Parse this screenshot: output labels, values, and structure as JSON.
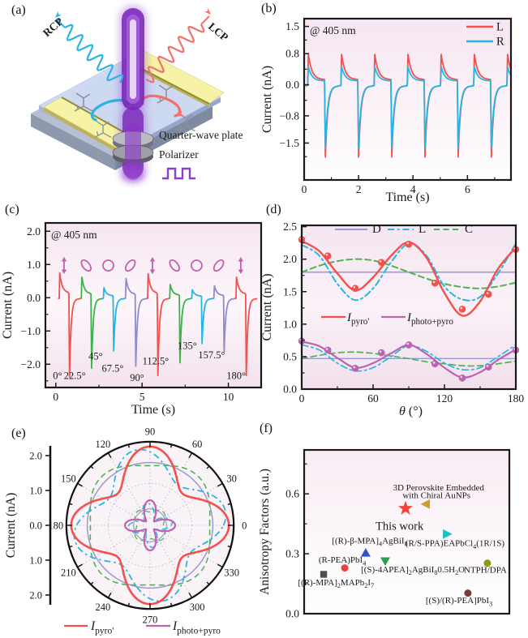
{
  "panels": [
    {
      "id": "a",
      "label": "(a)"
    },
    {
      "id": "b",
      "label": "(b)"
    },
    {
      "id": "c",
      "label": "(c)"
    },
    {
      "id": "d",
      "label": "(d)"
    },
    {
      "id": "e",
      "label": "(e)"
    },
    {
      "id": "f",
      "label": "(f)"
    }
  ],
  "schematic": {
    "labels": {
      "rcp": "RCP",
      "lcp": "LCP",
      "qwp": "Quarter-wave plate",
      "polarizer": "Polarizer"
    },
    "colors": {
      "rcp": "#2bb3e6",
      "lcp": "#f4716b",
      "beam": "#7a28b8",
      "beam_glow": "#8a3bd0",
      "film": "#cdd9f2",
      "electrode": "#f6f3a6",
      "electrode_edge": "#8f8c3a",
      "base": "#8e99ad",
      "pulse": "#8d3fd0",
      "molecule": "#8f8f98"
    }
  },
  "chart_data": [
    {
      "id": "b",
      "type": "line",
      "annotation": "@ 405 nm",
      "annotation_color": "#8b2cc8",
      "xlabel": "Time (s)",
      "ylabel": "Current (nA)",
      "x_range": [
        0,
        7.6
      ],
      "y_range": [
        -2.45,
        1.7
      ],
      "x_ticks": [
        {
          "v": 0,
          "label": "0"
        },
        {
          "v": 2,
          "label": "2"
        },
        {
          "v": 4,
          "label": "4"
        },
        {
          "v": 6,
          "label": "6"
        }
      ],
      "x_minor": [
        1,
        3,
        5,
        7
      ],
      "y_ticks": [
        {
          "v": 1.5,
          "label": "1.5"
        },
        {
          "v": 0.8,
          "label": "0.8"
        },
        {
          "v": 0,
          "label": "0.0"
        },
        {
          "v": -0.8,
          "label": "−0.8"
        },
        {
          "v": -1.5,
          "label": "−1.5"
        }
      ],
      "y_minor": [
        1.15,
        0.4,
        -0.4,
        -1.15,
        -1.85
      ],
      "pulse": {
        "t_on": 0.13,
        "period": 1.22,
        "on_duration": 0.62,
        "cycles": 7
      },
      "series": [
        {
          "name": "L",
          "color": "#f4514e",
          "peak": 0.78,
          "plateau": 0.13,
          "neg": -1.86
        },
        {
          "name": "R",
          "color": "#27b5e2",
          "peak": 0.46,
          "plateau": 0.1,
          "neg": -1.63
        }
      ]
    },
    {
      "id": "c",
      "type": "line",
      "annotation": "@ 405 nm",
      "annotation_color": "#8b2cc8",
      "xlabel": "Time (s)",
      "ylabel": "Current (nA)",
      "x_range": [
        -0.6,
        11.9
      ],
      "y_range": [
        -2.7,
        2.25
      ],
      "x_ticks": [
        {
          "v": 0,
          "label": "0"
        },
        {
          "v": 5,
          "label": "5"
        },
        {
          "v": 10,
          "label": "10"
        }
      ],
      "x_minor": [
        2.5,
        7.5
      ],
      "y_ticks": [
        {
          "v": 2,
          "label": "2.0"
        },
        {
          "v": 1,
          "label": "1.0"
        },
        {
          "v": 0,
          "label": "0.0"
        },
        {
          "v": -1,
          "label": "−1.0"
        },
        {
          "v": -2,
          "label": "−2.0"
        }
      ],
      "y_minor": [
        1.5,
        0.5,
        -0.5,
        -1.5,
        -2.5
      ],
      "pulse": {
        "t_on": 0.2,
        "period": 1.28,
        "on_duration": 0.56
      },
      "symbol_color": "#c45fae",
      "cycles": [
        {
          "angle": "0°",
          "color": "#f4514e",
          "peak": 0.75,
          "plateau": 0.15,
          "neg": -2.38,
          "pol": "linear",
          "label_t": 0.1,
          "label_y": -2.45
        },
        {
          "angle": "22.5°",
          "color": "#3cb34a",
          "peak": 0.62,
          "plateau": 0.12,
          "neg": -2.12,
          "pol": "ellipseL",
          "label_t": 1.1,
          "label_y": -2.45
        },
        {
          "angle": "45°",
          "color": "#22b6e5",
          "peak": 0.3,
          "plateau": 0.06,
          "neg": -1.6,
          "pol": "circle",
          "label_t": 2.31,
          "label_y": -1.86
        },
        {
          "angle": "67.5°",
          "color": "#8d8bca",
          "peak": 0.58,
          "plateau": 0.11,
          "neg": -2.06,
          "pol": "ellipseR",
          "label_t": 3.3,
          "label_y": -2.22
        },
        {
          "angle": "90°",
          "color": "#f4514e",
          "peak": 0.72,
          "plateau": 0.14,
          "neg": -2.34,
          "pol": "linear",
          "label_t": 4.71,
          "label_y": -2.5
        },
        {
          "angle": "112.5°",
          "color": "#3cb34a",
          "peak": 0.4,
          "plateau": 0.08,
          "neg": -1.96,
          "pol": "ellipseL",
          "label_t": 5.79,
          "label_y": -2.0
        },
        {
          "angle": "135°",
          "color": "#22b6e5",
          "peak": 0.24,
          "plateau": 0.05,
          "neg": -1.38,
          "pol": "circle",
          "label_t": 7.62,
          "label_y": -1.54
        },
        {
          "angle": "157.5°",
          "color": "#8d8bca",
          "peak": 0.36,
          "plateau": 0.07,
          "neg": -1.62,
          "pol": "ellipseR",
          "label_t": 9.03,
          "label_y": -1.82
        },
        {
          "angle": "180°",
          "color": "#f4514e",
          "peak": 0.62,
          "plateau": 0.12,
          "neg": -2.34,
          "pol": "linear",
          "label_t": 10.45,
          "label_y": -2.45
        }
      ]
    },
    {
      "id": "d",
      "type": "line",
      "ylabel": "Current (nA)",
      "xlabel_segs": [
        [
          "θ",
          "i"
        ],
        [
          " (°)"
        ]
      ],
      "x_range": [
        0,
        180
      ],
      "y_range": [
        0,
        2.52
      ],
      "x_ticks": [
        {
          "v": 0,
          "label": "0"
        },
        {
          "v": 60,
          "label": "60"
        },
        {
          "v": 120,
          "label": "120"
        },
        {
          "v": 180,
          "label": "180"
        }
      ],
      "x_minor": [
        30,
        90,
        150
      ],
      "y_ticks": [
        {
          "v": 0,
          "label": "0.0"
        },
        {
          "v": 0.5,
          "label": "0.5"
        },
        {
          "v": 1,
          "label": "1.0"
        },
        {
          "v": 1.5,
          "label": "1.5"
        },
        {
          "v": 2,
          "label": "2.0"
        },
        {
          "v": 2.5,
          "label": "2.5"
        }
      ],
      "y_minor": [
        0.25,
        0.75,
        1.25,
        1.75,
        2.25
      ],
      "style_legend": [
        {
          "label": "D",
          "color": "#9b99d2",
          "dash": "solid"
        },
        {
          "label": "L",
          "color": "#29b6e3",
          "dash": "dashdot"
        },
        {
          "label": "C",
          "color": "#52b253",
          "dash": "dashed"
        }
      ],
      "series_legend": [
        {
          "segs": [
            [
              "I",
              "i"
            ],
            [
              "pyro'",
              "s"
            ]
          ],
          "color": "#f4514e"
        },
        {
          "segs": [
            [
              "I",
              "i"
            ],
            [
              "photo+pyro",
              "s"
            ]
          ],
          "color": "#bd64b0"
        }
      ],
      "theta": [
        0,
        15,
        30,
        45,
        60,
        75,
        90,
        105,
        120,
        135,
        150,
        165,
        180
      ],
      "curves": [
        {
          "name": "pyro-D",
          "color": "#9b99d2",
          "dash": "solid",
          "width": 1.6,
          "values": [
            1.8,
            1.8,
            1.8,
            1.8,
            1.8,
            1.8,
            1.8,
            1.8,
            1.8,
            1.8,
            1.8,
            1.8,
            1.8
          ]
        },
        {
          "name": "pyro-C",
          "color": "#52b253",
          "dash": "dashed",
          "width": 2,
          "values": [
            1.8,
            1.9,
            1.97,
            2.0,
            1.98,
            1.9,
            1.8,
            1.7,
            1.62,
            1.57,
            1.55,
            1.58,
            1.64
          ]
        },
        {
          "name": "pyro-L",
          "color": "#29b6e3",
          "dash": "dashdot",
          "width": 2,
          "values": [
            2.22,
            2.05,
            1.62,
            1.37,
            1.55,
            1.95,
            2.24,
            2.05,
            1.58,
            1.38,
            1.42,
            1.78,
            2.24
          ]
        },
        {
          "name": "pyro",
          "color": "#f4514e",
          "dash": "solid",
          "width": 2.4,
          "values": [
            2.28,
            2.12,
            1.78,
            1.52,
            1.72,
            2.05,
            2.26,
            2.02,
            1.48,
            1.13,
            1.35,
            1.85,
            2.18
          ]
        },
        {
          "name": "photo-D",
          "color": "#9b99d2",
          "dash": "solid",
          "width": 1.4,
          "values": [
            0.47,
            0.47,
            0.47,
            0.47,
            0.47,
            0.47,
            0.47,
            0.47,
            0.47,
            0.47,
            0.47,
            0.47,
            0.47
          ]
        },
        {
          "name": "photo-C",
          "color": "#52b253",
          "dash": "dashed",
          "width": 1.7,
          "values": [
            0.47,
            0.52,
            0.56,
            0.57,
            0.55,
            0.51,
            0.47,
            0.42,
            0.39,
            0.36,
            0.36,
            0.39,
            0.43
          ]
        },
        {
          "name": "photo-L",
          "color": "#29b6e3",
          "dash": "dashdot",
          "width": 1.7,
          "values": [
            0.68,
            0.6,
            0.4,
            0.28,
            0.33,
            0.5,
            0.67,
            0.58,
            0.4,
            0.3,
            0.33,
            0.5,
            0.68
          ]
        },
        {
          "name": "photo",
          "color": "#bd64b0",
          "dash": "solid",
          "width": 2.2,
          "values": [
            0.73,
            0.66,
            0.48,
            0.33,
            0.4,
            0.55,
            0.68,
            0.54,
            0.33,
            0.18,
            0.26,
            0.45,
            0.61
          ]
        }
      ],
      "markers": [
        {
          "name": "pyro-points",
          "color": "#f4514e",
          "points": [
            [
              0,
              2.3
            ],
            [
              22,
              2.05
            ],
            [
              45,
              1.55
            ],
            [
              67,
              1.95
            ],
            [
              90,
              2.23
            ],
            [
              112,
              1.63
            ],
            [
              135,
              1.23
            ],
            [
              157,
              1.46
            ],
            [
              180,
              2.15
            ]
          ]
        },
        {
          "name": "photo-points",
          "color": "#bd64b0",
          "points": [
            [
              0,
              0.74
            ],
            [
              22,
              0.6
            ],
            [
              45,
              0.32
            ],
            [
              67,
              0.56
            ],
            [
              90,
              0.68
            ],
            [
              112,
              0.39
            ],
            [
              135,
              0.17
            ],
            [
              157,
              0.34
            ],
            [
              180,
              0.6
            ]
          ]
        }
      ]
    },
    {
      "id": "e",
      "type": "polar",
      "ylabel": "Current (nA)",
      "r_max": 2.4,
      "grid_r": [
        0.6,
        1.2,
        1.8
      ],
      "r_tick_labels": [
        "2.0",
        "1.0",
        "0.0",
        "1.0",
        "2.0"
      ],
      "r_tick_values": [
        2,
        1,
        0,
        -1,
        -2
      ],
      "angle_labels": [
        "0",
        "30",
        "60",
        "90",
        "120",
        "150",
        "180",
        "210",
        "240",
        "270",
        "300",
        "330"
      ],
      "curves": [
        {
          "name": "pyro-D",
          "color": "#9b99d2",
          "dash": "solid",
          "width": 1.5,
          "base": 1.8,
          "amp": 0,
          "lobes": 4,
          "phase": 0
        },
        {
          "name": "pyro-C",
          "color": "#52b253",
          "dash": "dashed",
          "width": 1.6,
          "base": 1.84,
          "amp": 0.13,
          "lobes": 4,
          "phase": 45
        },
        {
          "name": "pyro-L",
          "color": "#29b6e3",
          "dash": "dashdot",
          "width": 1.8,
          "base": 1.8,
          "amp": 0.4,
          "lobes": 4,
          "phase": 10
        },
        {
          "name": "pyro",
          "color": "#f4514e",
          "dash": "solid",
          "width": 2.6,
          "base": 1.78,
          "amp": 0.48,
          "lobes": 4,
          "phase": 0
        },
        {
          "name": "photo-D",
          "color": "#9b99d2",
          "dash": "solid",
          "width": 1.2,
          "base": 0.47,
          "amp": 0,
          "lobes": 4,
          "phase": 0
        },
        {
          "name": "photo-C",
          "color": "#52b253",
          "dash": "dashed",
          "width": 1.3,
          "base": 0.46,
          "amp": 0.08,
          "lobes": 4,
          "phase": 45
        },
        {
          "name": "photo-L",
          "color": "#29b6e3",
          "dash": "dashdot",
          "width": 1.4,
          "base": 0.42,
          "amp": 0.22,
          "lobes": 4,
          "phase": 8
        },
        {
          "name": "photo",
          "color": "#bd64b0",
          "dash": "solid",
          "width": 2.2,
          "base": 0.44,
          "amp": 0.28,
          "lobes": 4,
          "phase": 0
        }
      ],
      "legend": [
        {
          "segs": [
            [
              "I",
              "i"
            ],
            [
              "pyro'",
              "s"
            ]
          ],
          "color": "#f4514e"
        },
        {
          "segs": [
            [
              "I",
              "i"
            ],
            [
              "photo+pyro",
              "s"
            ]
          ],
          "color": "#bd64b0"
        }
      ]
    },
    {
      "id": "f",
      "type": "scatter",
      "ylabel": "Anisotropy Factors (a.u.)",
      "y_range": [
        0,
        0.82
      ],
      "y_ticks": [
        {
          "v": 0,
          "label": "0.0"
        },
        {
          "v": 0.3,
          "label": "0.3"
        },
        {
          "v": 0.6,
          "label": "0.6"
        }
      ],
      "y_minor": [
        0.15,
        0.45,
        0.75
      ],
      "points": [
        {
          "marker": "square",
          "color": "#4f4f4f",
          "x": 0.095,
          "y": 0.197,
          "label": [
            [
              "[(R)-MPA]"
            ],
            [
              "2",
              "s"
            ],
            [
              "MAPb"
            ],
            [
              "2",
              "s"
            ],
            [
              "I"
            ],
            [
              "7",
              "s"
            ]
          ],
          "lx": 0.155,
          "ly": 0.142
        },
        {
          "marker": "circle",
          "color": "#ea4440",
          "x": 0.198,
          "y": 0.229,
          "label": [
            [
              "(R-PEA)PbI"
            ],
            [
              "4",
              "s"
            ]
          ],
          "lx": 0.186,
          "ly": 0.255
        },
        {
          "marker": "tri-up",
          "color": "#2e55c8",
          "x": 0.3,
          "y": 0.304,
          "label": [
            [
              "[(R)-β-MPA]"
            ],
            [
              "4",
              "s"
            ],
            [
              "AgBiI"
            ],
            [
              "8",
              "s"
            ]
          ],
          "lx": 0.32,
          "ly": 0.352
        },
        {
          "marker": "tri-down",
          "color": "#2f9e50",
          "x": 0.395,
          "y": 0.264,
          "label": [
            [
              "[(S)-4APEA]"
            ],
            [
              "2",
              "s"
            ],
            [
              "AgBiI"
            ],
            [
              "8",
              "s"
            ],
            [
              "0.5H"
            ],
            [
              "2",
              "s"
            ],
            [
              "O"
            ]
          ],
          "lx": 0.53,
          "ly": 0.208
        },
        {
          "marker": "star",
          "color": "#f5413d",
          "x": 0.494,
          "y": 0.527,
          "label": [
            [
              "This work"
            ]
          ],
          "lx": 0.465,
          "ly": 0.42,
          "label_color": "#f5413d",
          "label_size": 14.5
        },
        {
          "marker": "tri-left",
          "color": "#c9a227",
          "x": 0.593,
          "y": 0.549,
          "label": [
            [
              "3D Perovskite Embedded"
            ]
          ],
          "label2": [
            [
              "with Chiral AuNPs"
            ]
          ],
          "lx": 0.655,
          "ly": 0.617,
          "lx2": 0.645,
          "ly2": 0.578
        },
        {
          "marker": "tri-right",
          "color": "#17c2c6",
          "x": 0.696,
          "y": 0.399,
          "label": [
            [
              "(R/S-PPA)EAPbCl"
            ],
            [
              "4",
              "s"
            ],
            [
              "(1R/1S)"
            ]
          ],
          "lx": 0.735,
          "ly": 0.338
        },
        {
          "marker": "circle",
          "color": "#8f9a10",
          "x": 0.893,
          "y": 0.253,
          "label": [
            [
              "NTPH/DPA"
            ]
          ],
          "lx": 0.883,
          "ly": 0.206
        },
        {
          "marker": "circle",
          "color": "#6f3f38",
          "x": 0.798,
          "y": 0.103,
          "label": [
            [
              "[(S)/(R)-PEA]PbI"
            ],
            [
              "3",
              "s"
            ]
          ],
          "lx": 0.755,
          "ly": 0.052
        }
      ]
    }
  ]
}
